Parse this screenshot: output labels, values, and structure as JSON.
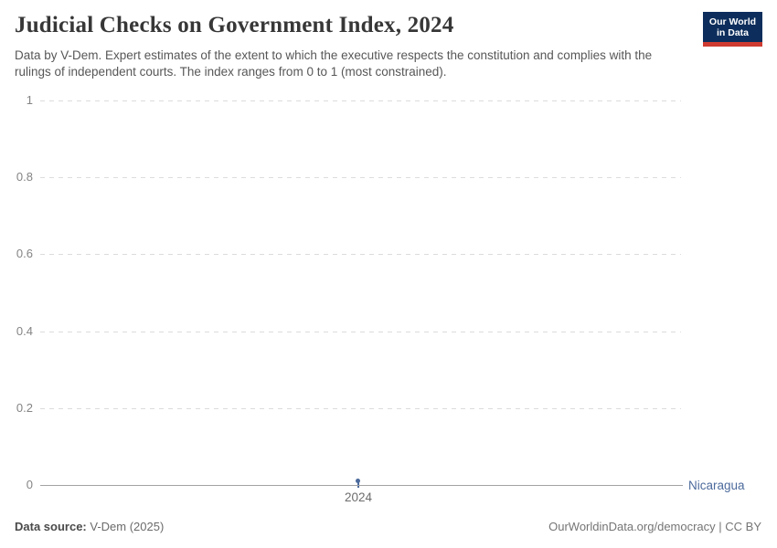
{
  "header": {
    "title": "Judicial Checks on Government Index, 2024",
    "subtitle": "Data by V-Dem. Expert estimates of the extent to which the executive respects the constitution and complies with the rulings of independent courts. The index ranges from 0 to 1 (most constrained).",
    "logo": {
      "line1": "Our World",
      "line2": "in Data",
      "bg_color": "#0d2e5c",
      "accent_color": "#cf3b31"
    }
  },
  "chart_data": {
    "type": "line",
    "title": "Judicial Checks on Government Index, 2024",
    "series": [
      {
        "name": "Nicaragua",
        "color": "#4c6a9c",
        "x": [
          2024
        ],
        "values": [
          0.01
        ]
      }
    ],
    "xticks": [
      "2024"
    ],
    "yticks": [
      0,
      0.2,
      0.4,
      0.6,
      0.8,
      1
    ],
    "ylim": [
      0,
      1
    ],
    "xlabel": "",
    "ylabel": "",
    "grid": "horizontal-dashed",
    "legend_position": "right-end-label"
  },
  "footer": {
    "source_label": "Data source:",
    "source_value": " V-Dem (2025)",
    "credit": "OurWorldinData.org/democracy | CC BY"
  }
}
